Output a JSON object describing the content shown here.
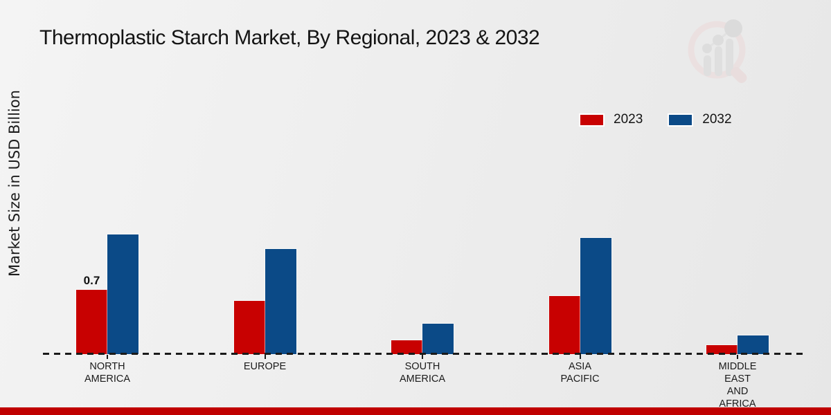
{
  "header": {
    "title": "Thermoplastic Starch Market, By Regional, 2023 & 2032"
  },
  "colors": {
    "series_2023": "#c80101",
    "series_2032": "#0b4a87",
    "footer_strip": "#c00000",
    "baseline": "#1a1a1a"
  },
  "chart_data": {
    "type": "bar",
    "title": "Thermoplastic Starch Market, By Regional, 2023 & 2032",
    "xlabel": "",
    "ylabel": "Market Size in USD Billion",
    "categories": [
      "NORTH AMERICA",
      "EUROPE",
      "SOUTH AMERICA",
      "ASIA PACIFIC",
      "MIDDLE EAST AND AFRICA"
    ],
    "category_label_lines": [
      [
        "NORTH",
        "AMERICA"
      ],
      [
        "EUROPE"
      ],
      [
        "SOUTH",
        "AMERICA"
      ],
      [
        "ASIA",
        "PACIFIC"
      ],
      [
        "MIDDLE",
        "EAST",
        "AND",
        "AFRICA"
      ]
    ],
    "series": [
      {
        "name": "2023",
        "color": "#c80101",
        "values": [
          0.7,
          0.58,
          0.15,
          0.63,
          0.1
        ],
        "value_labels": [
          "0.7",
          "",
          "",
          "",
          ""
        ]
      },
      {
        "name": "2032",
        "color": "#0b4a87",
        "values": [
          1.3,
          1.14,
          0.33,
          1.26,
          0.2
        ],
        "value_labels": [
          "",
          "",
          "",
          "",
          ""
        ]
      }
    ],
    "ylim": [
      0,
      1.45
    ],
    "grid": false,
    "legend_position": "top-right",
    "baseline_style": "dashed",
    "shown_value_labels": [
      "0.7"
    ]
  }
}
